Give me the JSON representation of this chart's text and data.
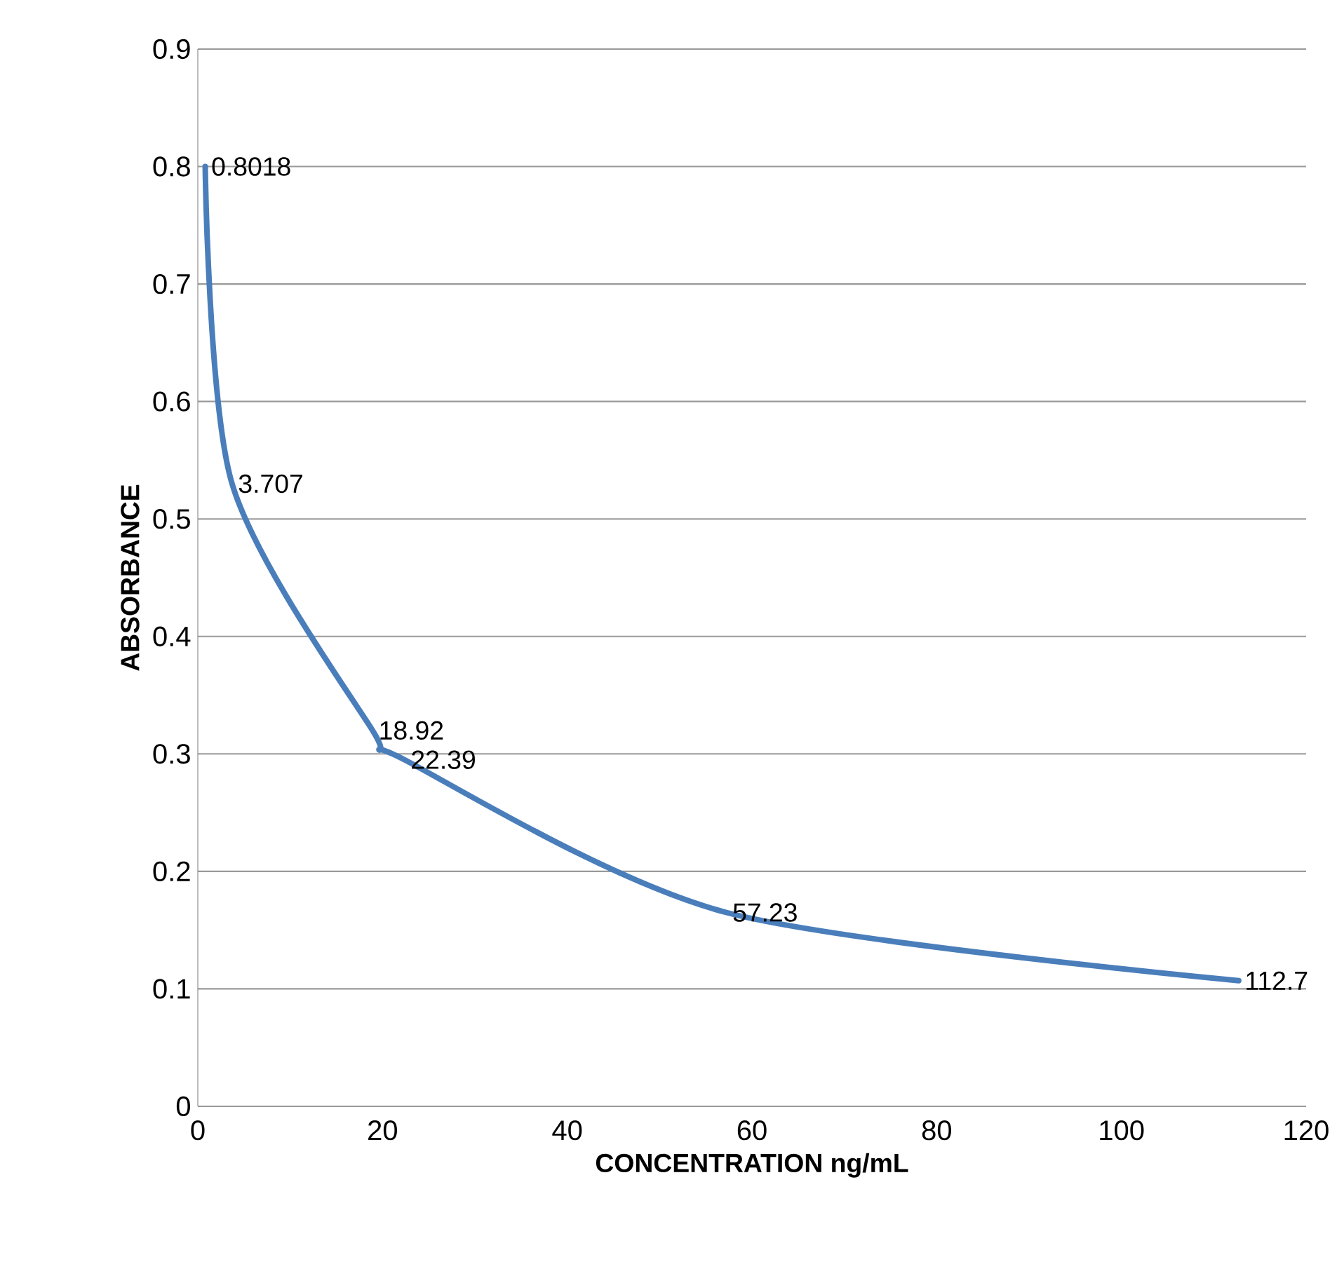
{
  "chart_data": {
    "type": "line",
    "xlabel": "CONCENTRATION ng/mL",
    "ylabel": "ABSORBANCE",
    "x": [
      0.8018,
      3.707,
      18.92,
      22.39,
      57.23,
      112.7
    ],
    "values": [
      0.8,
      0.53,
      0.32,
      0.295,
      0.165,
      0.107
    ],
    "annotations": [
      {
        "text": "0.8018",
        "x": 0.8018,
        "y": 0.8
      },
      {
        "text": "3.707",
        "x": 3.707,
        "y": 0.53
      },
      {
        "text": "18.92",
        "x": 18.92,
        "y": 0.32
      },
      {
        "text": "22.39",
        "x": 22.39,
        "y": 0.295
      },
      {
        "text": "57.23",
        "x": 57.23,
        "y": 0.165
      },
      {
        "text": "112.7",
        "x": 112.7,
        "y": 0.107
      }
    ],
    "color": "#4a7ebb",
    "marker": "none",
    "line_style": "solid",
    "xlim": [
      0,
      120
    ],
    "xticks": [
      0,
      20,
      40,
      60,
      80,
      100,
      120
    ],
    "ylim": [
      0,
      0.9
    ],
    "yticks": [
      0,
      0.1,
      0.2,
      0.3,
      0.4,
      0.5,
      0.6,
      0.7,
      0.8,
      0.9
    ],
    "grid": "y"
  }
}
